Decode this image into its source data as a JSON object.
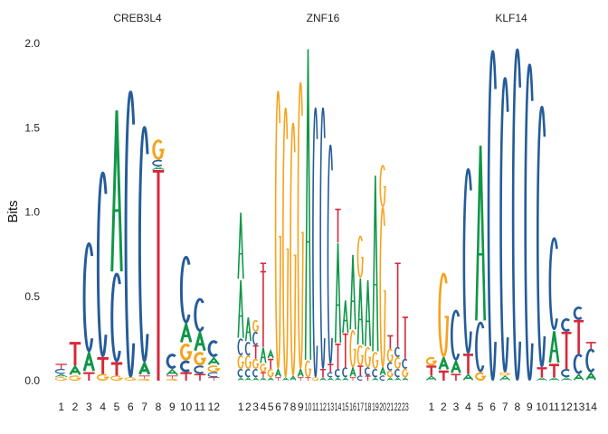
{
  "chart_data": {
    "type": "sequence-logo",
    "ylabel": "Bits",
    "ylim": [
      0,
      2
    ],
    "yticks": [
      "0.0",
      "0.5",
      "1.0",
      "1.5",
      "2.0"
    ],
    "grid": false,
    "base_colors": {
      "A": "#109648",
      "C": "#255C99",
      "G": "#F7A21B",
      "T": "#D62839"
    },
    "panels": [
      {
        "title": "CREB3L4",
        "positions": [
          "1",
          "2",
          "3",
          "4",
          "5",
          "6",
          "7",
          "8",
          "9",
          "10",
          "11",
          "12"
        ],
        "letters": [
          [
            [
              "G",
              0.02
            ],
            [
              "A",
              0.02
            ],
            [
              "C",
              0.03
            ],
            [
              "T",
              0.03
            ]
          ],
          [
            [
              "G",
              0.03
            ],
            [
              "A",
              0.06
            ],
            [
              "T",
              0.14
            ]
          ],
          [
            [
              "T",
              0.05
            ],
            [
              "A",
              0.12
            ],
            [
              "C",
              0.65
            ]
          ],
          [
            [
              "G",
              0.04
            ],
            [
              "T",
              0.1
            ],
            [
              "C",
              1.1
            ]
          ],
          [
            [
              "G",
              0.03
            ],
            [
              "T",
              0.08
            ],
            [
              "C",
              0.53
            ],
            [
              "A",
              0.97
            ]
          ],
          [
            [
              "G",
              0.02
            ],
            [
              "C",
              1.7
            ]
          ],
          [
            [
              "G",
              0.01
            ],
            [
              "T",
              0.02
            ],
            [
              "A",
              0.08
            ],
            [
              "C",
              1.4
            ]
          ],
          [
            [
              "T",
              1.25
            ],
            [
              "A",
              0.02
            ],
            [
              "C",
              0.04
            ],
            [
              "G",
              0.12
            ]
          ],
          [
            [
              "G",
              0.01
            ],
            [
              "T",
              0.02
            ],
            [
              "A",
              0.04
            ],
            [
              "C",
              0.09
            ]
          ],
          [
            [
              "T",
              0.05
            ],
            [
              "C",
              0.07
            ],
            [
              "G",
              0.1
            ],
            [
              "A",
              0.12
            ],
            [
              "C",
              0.4
            ]
          ],
          [
            [
              "T",
              0.04
            ],
            [
              "C",
              0.05
            ],
            [
              "G",
              0.08
            ],
            [
              "A",
              0.12
            ],
            [
              "C",
              0.2
            ]
          ],
          [
            [
              "T",
              0.02
            ],
            [
              "C",
              0.03
            ],
            [
              "G",
              0.04
            ],
            [
              "A",
              0.05
            ],
            [
              "C",
              0.1
            ]
          ]
        ]
      },
      {
        "title": "ZNF16",
        "positions": [
          "1",
          "2",
          "3",
          "4",
          "5",
          "6",
          "7",
          "8",
          "9",
          "10",
          "11",
          "12",
          "13",
          "14",
          "15",
          "16",
          "17",
          "18",
          "19",
          "20",
          "21",
          "22",
          "23"
        ],
        "letters": [
          [
            [
              "A",
              0.02
            ],
            [
              "C",
              0.05
            ],
            [
              "G",
              0.08
            ],
            [
              "C",
              0.1
            ],
            [
              "A",
              0.35
            ],
            [
              "A",
              0.4
            ]
          ],
          [
            [
              "A",
              0.02
            ],
            [
              "C",
              0.05
            ],
            [
              "G",
              0.08
            ],
            [
              "C",
              0.08
            ],
            [
              "A",
              0.15
            ]
          ],
          [
            [
              "A",
              0.02
            ],
            [
              "C",
              0.05
            ],
            [
              "G",
              0.06
            ],
            [
              "T",
              0.08
            ],
            [
              "C",
              0.08
            ],
            [
              "G",
              0.07
            ]
          ],
          [
            [
              "A",
              0.02
            ],
            [
              "T",
              0.03
            ],
            [
              "G",
              0.05
            ],
            [
              "A",
              0.1
            ],
            [
              "T",
              0.45
            ],
            [
              "T",
              0.05
            ]
          ],
          [
            [
              "A",
              0.02
            ],
            [
              "G",
              0.05
            ],
            [
              "T",
              0.06
            ],
            [
              "A",
              0.05
            ]
          ],
          [
            [
              "T",
              0.02
            ],
            [
              "A",
              0.05
            ],
            [
              "G",
              1.65
            ]
          ],
          [
            [
              "A",
              0.02
            ],
            [
              "G",
              1.6
            ]
          ],
          [
            [
              "A",
              0.03
            ],
            [
              "G",
              1.5
            ]
          ],
          [
            [
              "T",
              0.02
            ],
            [
              "A",
              0.05
            ],
            [
              "G",
              1.7
            ]
          ],
          [
            [
              "T",
              0.02
            ],
            [
              "G",
              0.1
            ],
            [
              "A",
              1.85
            ]
          ],
          [
            [
              "G",
              0.02
            ],
            [
              "C",
              1.6
            ]
          ],
          [
            [
              "A",
              0.02
            ],
            [
              "T",
              0.05
            ],
            [
              "C",
              1.55
            ]
          ],
          [
            [
              "A",
              0.02
            ],
            [
              "C",
              0.03
            ],
            [
              "T",
              0.05
            ],
            [
              "C",
              1.3
            ]
          ],
          [
            [
              "A",
              0.02
            ],
            [
              "C",
              0.05
            ],
            [
              "T",
              0.15
            ],
            [
              "A",
              0.6
            ],
            [
              "T",
              0.2
            ]
          ],
          [
            [
              "A",
              0.02
            ],
            [
              "C",
              0.06
            ],
            [
              "T",
              0.2
            ],
            [
              "A",
              0.2
            ]
          ],
          [
            [
              "T",
              0.02
            ],
            [
              "A",
              0.06
            ],
            [
              "G",
              0.22
            ],
            [
              "A",
              0.45
            ]
          ],
          [
            [
              "C",
              0.03
            ],
            [
              "T",
              0.06
            ],
            [
              "G",
              0.12
            ],
            [
              "A",
              0.4
            ],
            [
              "G",
              0.25
            ]
          ],
          [
            [
              "T",
              0.03
            ],
            [
              "C",
              0.05
            ],
            [
              "G",
              0.12
            ],
            [
              "A",
              0.4
            ]
          ],
          [
            [
              "A",
              0.02
            ],
            [
              "C",
              0.05
            ],
            [
              "G",
              0.1
            ],
            [
              "A",
              1.05
            ]
          ],
          [
            [
              "C",
              0.03
            ],
            [
              "A",
              0.05
            ],
            [
              "G",
              0.95
            ],
            [
              "G",
              0.25
            ]
          ],
          [
            [
              "A",
              0.02
            ],
            [
              "G",
              0.04
            ],
            [
              "C",
              0.05
            ],
            [
              "G",
              0.08
            ],
            [
              "T",
              0.08
            ]
          ],
          [
            [
              "A",
              0.02
            ],
            [
              "C",
              0.05
            ],
            [
              "G",
              0.07
            ],
            [
              "C",
              0.06
            ],
            [
              "T",
              0.5
            ]
          ],
          [
            [
              "A",
              0.02
            ],
            [
              "G",
              0.05
            ],
            [
              "C",
              0.06
            ],
            [
              "T",
              0.25
            ]
          ]
        ]
      },
      {
        "title": "KLF14",
        "positions": [
          "1",
          "2",
          "3",
          "4",
          "5",
          "6",
          "7",
          "8",
          "9",
          "10",
          "11",
          "12",
          "13",
          "14"
        ],
        "letters": [
          [
            [
              "A",
              0.03
            ],
            [
              "T",
              0.06
            ],
            [
              "G",
              0.05
            ]
          ],
          [
            [
              "T",
              0.06
            ],
            [
              "A",
              0.08
            ],
            [
              "G",
              0.5
            ]
          ],
          [
            [
              "T",
              0.04
            ],
            [
              "A",
              0.08
            ],
            [
              "C",
              0.3
            ]
          ],
          [
            [
              "A",
              0.04
            ],
            [
              "T",
              0.12
            ],
            [
              "C",
              1.1
            ]
          ],
          [
            [
              "G",
              0.05
            ],
            [
              "C",
              0.3
            ],
            [
              "A",
              1.05
            ]
          ],
          [
            [
              "C",
              1.96
            ]
          ],
          [
            [
              "A",
              0.03
            ],
            [
              "G",
              0.02
            ],
            [
              "C",
              1.75
            ]
          ],
          [
            [
              "C",
              1.97
            ]
          ],
          [
            [
              "C",
              1.88
            ]
          ],
          [
            [
              "A",
              0.02
            ],
            [
              "T",
              0.06
            ],
            [
              "C",
              1.55
            ]
          ],
          [
            [
              "A",
              0.02
            ],
            [
              "T",
              0.08
            ],
            [
              "A",
              0.2
            ],
            [
              "C",
              0.55
            ]
          ],
          [
            [
              "A",
              0.02
            ],
            [
              "C",
              0.05
            ],
            [
              "T",
              0.22
            ],
            [
              "C",
              0.08
            ]
          ],
          [
            [
              "A",
              0.04
            ],
            [
              "C",
              0.12
            ],
            [
              "T",
              0.2
            ],
            [
              "C",
              0.08
            ]
          ],
          [
            [
              "A",
              0.05
            ],
            [
              "C",
              0.14
            ],
            [
              "T",
              0.04
            ]
          ]
        ]
      }
    ]
  }
}
